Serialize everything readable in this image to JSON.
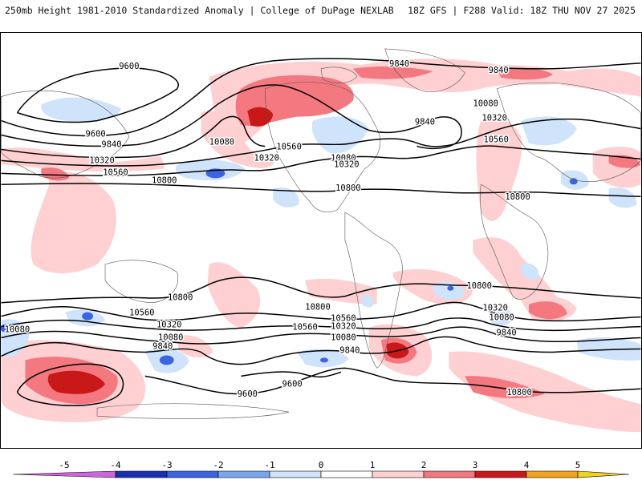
{
  "header": {
    "title_left": "250mb Height 1981-2010 Standardized Anomaly | College of DuPage NEXLAB",
    "title_right": "18Z GFS | F288 Valid: 18Z THU NOV 27 2025"
  },
  "contour_labels": [
    {
      "id": "c1",
      "text": "9600"
    },
    {
      "id": "c2",
      "text": "9600"
    },
    {
      "id": "c3",
      "text": "9840"
    },
    {
      "id": "c4",
      "text": "10080"
    },
    {
      "id": "c5",
      "text": "10320"
    },
    {
      "id": "c6",
      "text": "10560"
    },
    {
      "id": "c7",
      "text": "10800"
    },
    {
      "id": "c8",
      "text": "10320"
    },
    {
      "id": "c9",
      "text": "10560"
    },
    {
      "id": "c10",
      "text": "9840"
    },
    {
      "id": "c11",
      "text": "9840"
    },
    {
      "id": "c12",
      "text": "10080"
    },
    {
      "id": "c13",
      "text": "10320"
    },
    {
      "id": "c14",
      "text": "10800"
    },
    {
      "id": "c15",
      "text": "9840"
    },
    {
      "id": "c16",
      "text": "10080"
    },
    {
      "id": "c17",
      "text": "10320"
    },
    {
      "id": "c18",
      "text": "10560"
    },
    {
      "id": "c19",
      "text": "10800"
    },
    {
      "id": "c20",
      "text": "10800"
    },
    {
      "id": "c21",
      "text": "10800"
    },
    {
      "id": "c22",
      "text": "10800"
    },
    {
      "id": "c23",
      "text": "10560"
    },
    {
      "id": "c24",
      "text": "10320"
    },
    {
      "id": "c25",
      "text": "10080"
    },
    {
      "id": "c26",
      "text": "9840"
    },
    {
      "id": "c27",
      "text": "9600"
    },
    {
      "id": "c28",
      "text": "9600"
    },
    {
      "id": "c29",
      "text": "10080"
    },
    {
      "id": "c30",
      "text": "10560"
    },
    {
      "id": "c31",
      "text": "10320"
    },
    {
      "id": "c32",
      "text": "10080"
    },
    {
      "id": "c33",
      "text": "9840"
    },
    {
      "id": "c34",
      "text": "10800"
    },
    {
      "id": "c35",
      "text": "10560"
    },
    {
      "id": "c36",
      "text": "10320"
    },
    {
      "id": "c37",
      "text": "10080"
    },
    {
      "id": "c38",
      "text": "9840"
    }
  ],
  "colorbar": {
    "tick_labels": [
      "-5",
      "-4",
      "-3",
      "-2",
      "-1",
      "0",
      "1",
      "2",
      "3",
      "4",
      "5"
    ],
    "colors": {
      "lt_-4": "#cc66dd",
      "n4_n3": "#1a2fb0",
      "n3_n2": "#3c63e0",
      "n2_n1": "#7aa6f0",
      "n1_0": "#cfe3fa",
      "z_1": "#ffffff",
      "p1_2": "#ffd0d2",
      "p2_3": "#f47880",
      "p3_4": "#c81818",
      "p4_5": "#f4a020",
      "gt_5": "#f0d020"
    }
  }
}
